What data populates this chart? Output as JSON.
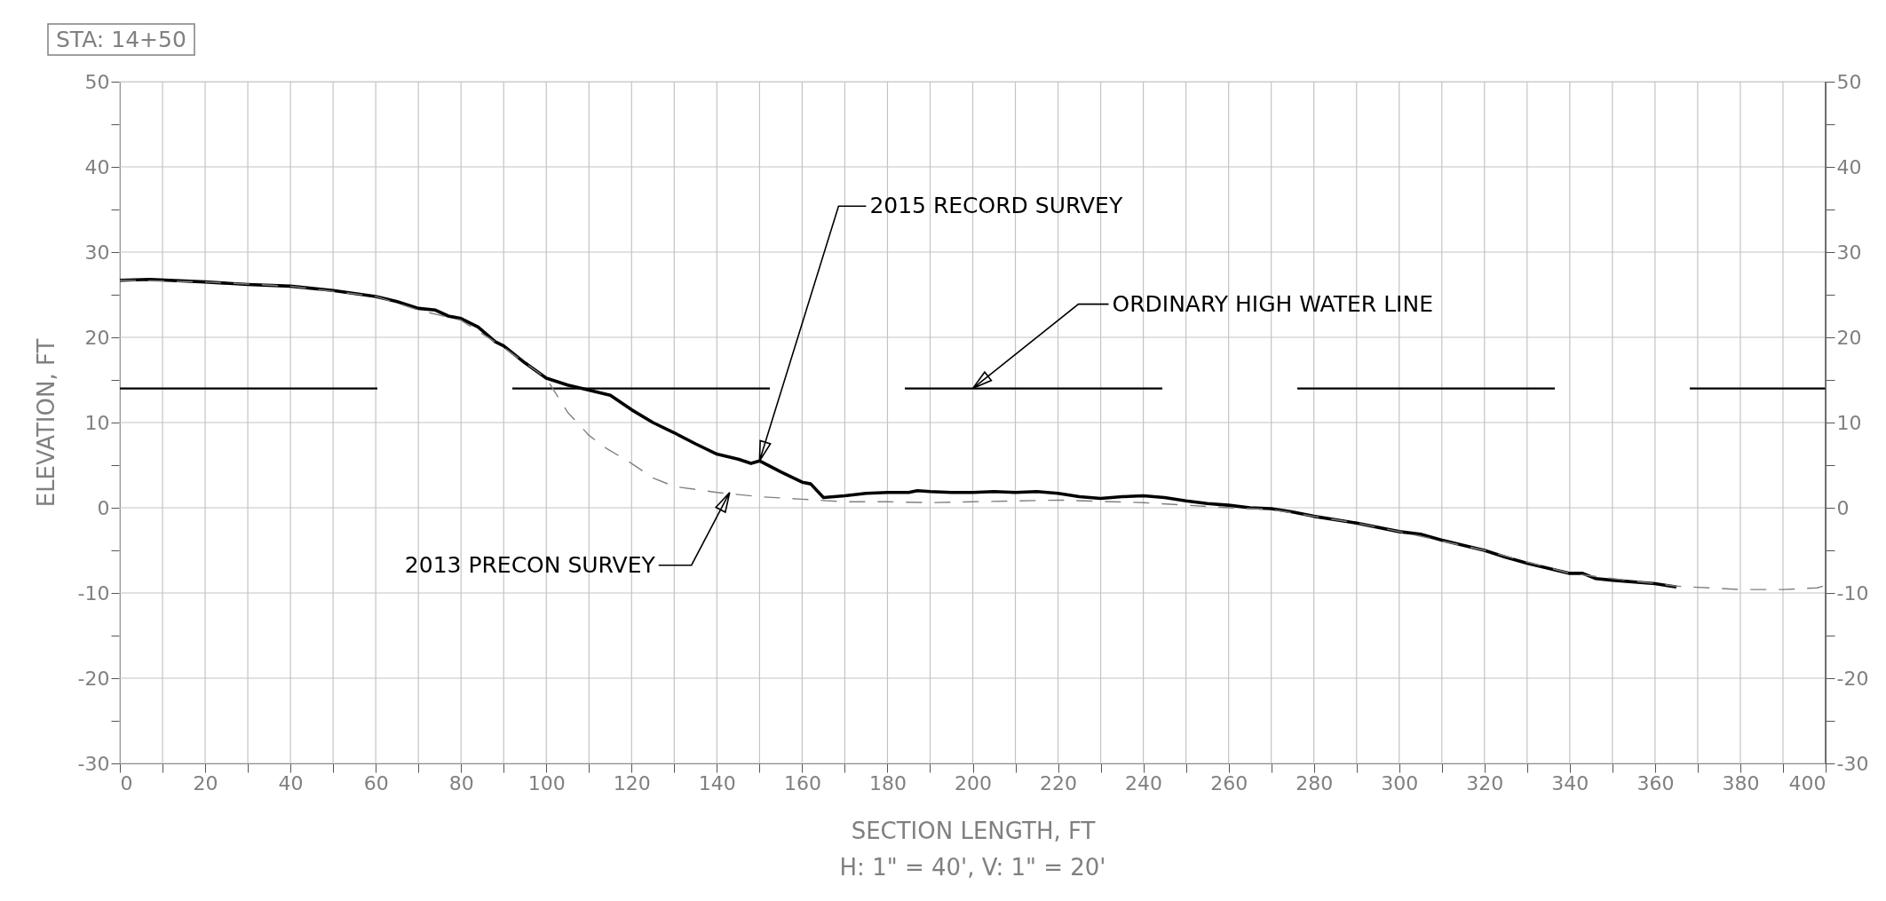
{
  "chart_data": {
    "type": "line",
    "title": "STA: 14+50",
    "xlabel": "SECTION LENGTH, FT",
    "ylabel": "ELEVATION, FT",
    "xlim": [
      0,
      400
    ],
    "xticks": [
      0,
      {
        "value": 10,
        "label": null
      },
      20,
      {
        "value": 30,
        "label": null
      },
      40,
      {
        "value": 50,
        "label": null
      },
      60,
      {
        "value": 70,
        "label": null
      },
      80,
      {
        "value": 90,
        "label": null
      },
      100,
      {
        "value": 110,
        "label": null
      },
      120,
      {
        "value": 130,
        "label": null
      },
      140,
      {
        "value": 150,
        "label": null
      },
      160,
      {
        "value": 170,
        "label": null
      },
      180,
      {
        "value": 190,
        "label": null
      },
      200,
      {
        "value": 210,
        "label": null
      },
      220,
      {
        "value": 230,
        "label": null
      },
      240,
      {
        "value": 250,
        "label": null
      },
      260,
      {
        "value": 270,
        "label": null
      },
      280,
      {
        "value": 290,
        "label": null
      },
      300,
      {
        "value": 310,
        "label": null
      },
      320,
      {
        "value": 330,
        "label": null
      },
      340,
      {
        "value": 350,
        "label": null
      },
      360,
      {
        "value": 370,
        "label": null
      },
      380,
      {
        "value": 390,
        "label": null
      },
      400
    ],
    "ylim": [
      -30,
      50
    ],
    "yticks": [
      -30,
      {
        "value": -25,
        "label": null
      },
      -20,
      {
        "value": -15,
        "label": null
      },
      -10,
      {
        "value": -5,
        "label": null
      },
      0,
      {
        "value": 5,
        "label": null
      },
      10,
      {
        "value": 15,
        "label": null
      },
      20,
      {
        "value": 25,
        "label": null
      },
      30,
      {
        "value": 35,
        "label": null
      },
      40,
      {
        "value": 45,
        "label": null
      },
      50
    ],
    "y2lim": [
      -30,
      50
    ],
    "y2ticks": [
      -30,
      {
        "value": -25,
        "label": null
      },
      -20,
      {
        "value": -15,
        "label": null
      },
      -10,
      {
        "value": -5,
        "label": null
      },
      0,
      {
        "value": 5,
        "label": null
      },
      10,
      {
        "value": 15,
        "label": null
      },
      20,
      {
        "value": 25,
        "label": null
      },
      30,
      {
        "value": 35,
        "label": null
      },
      40,
      {
        "value": 45,
        "label": null
      },
      50
    ],
    "grid": true,
    "marker": "none",
    "series": [
      {
        "color": "#000000",
        "line_style": "solid",
        "x": [
          0,
          7,
          20,
          30,
          40,
          50,
          60,
          65,
          70,
          74,
          77,
          80,
          84,
          88,
          90,
          95,
          100,
          105,
          110,
          115,
          120,
          125,
          130,
          135,
          140,
          145,
          148,
          150,
          155,
          160,
          162,
          165,
          170,
          175,
          180,
          185,
          187,
          190,
          195,
          200,
          205,
          210,
          215,
          220,
          225,
          230,
          235,
          240,
          245,
          250,
          255,
          260,
          265,
          270,
          275,
          280,
          290,
          300,
          305,
          310,
          320,
          325,
          330,
          335,
          340,
          343,
          346,
          350,
          360,
          365
        ],
        "values": [
          26.7,
          26.8,
          26.5,
          26.2,
          26,
          25.5,
          24.8,
          24.2,
          23.4,
          23.2,
          22.5,
          22.2,
          21.2,
          19.5,
          19,
          17,
          15.2,
          14.4,
          13.8,
          13.2,
          11.5,
          10,
          8.8,
          7.5,
          6.3,
          5.7,
          5.2,
          5.5,
          4.2,
          3,
          2.8,
          1.2,
          1.4,
          1.7,
          1.8,
          1.8,
          2,
          1.9,
          1.8,
          1.8,
          1.9,
          1.8,
          1.9,
          1.7,
          1.3,
          1.1,
          1.3,
          1.4,
          1.2,
          0.8,
          0.5,
          0.3,
          0,
          -0.1,
          -0.5,
          -1,
          -1.8,
          -2.8,
          -3.1,
          -3.8,
          -5,
          -5.8,
          -6.5,
          -7.1,
          -7.7,
          -7.7,
          -8.3,
          -8.5,
          -8.9,
          -9.3
        ]
      },
      {
        "color": "#808080",
        "line_style": "dashed",
        "x": [
          0,
          20,
          40,
          60,
          70,
          80,
          90,
          100,
          105,
          110,
          114,
          120,
          125,
          130,
          140,
          150,
          160,
          170,
          180,
          190,
          200,
          220,
          240,
          260,
          270,
          280,
          290,
          300,
          320,
          340,
          365,
          380,
          390,
          398,
          400
        ],
        "values": [
          26.7,
          26.5,
          26,
          24.8,
          23.2,
          22,
          18.8,
          15.2,
          11.2,
          8.5,
          7,
          5.2,
          3.5,
          2.5,
          1.8,
          1.3,
          1,
          0.7,
          0.7,
          0.6,
          0.7,
          0.9,
          0.6,
          0,
          -0.2,
          -1,
          -1.8,
          -2.8,
          -5,
          -7.7,
          -9.2,
          -9.6,
          -9.6,
          -9.4,
          -9.1
        ]
      }
    ],
    "ref_lines": [
      {
        "axis": "y",
        "value": 14,
        "label": "ORDINARY HIGH WATER LINE",
        "color": "#000000",
        "line_style": "dashed"
      }
    ],
    "annotations": [
      {
        "text": "2015 RECORD SURVEY",
        "x": 150,
        "y": 5.5
      },
      {
        "text": "2013 PRECON SURVEY",
        "x": 143,
        "y": 1.8
      },
      "H: 1\" = 40', V: 1\" = 20'"
    ]
  }
}
